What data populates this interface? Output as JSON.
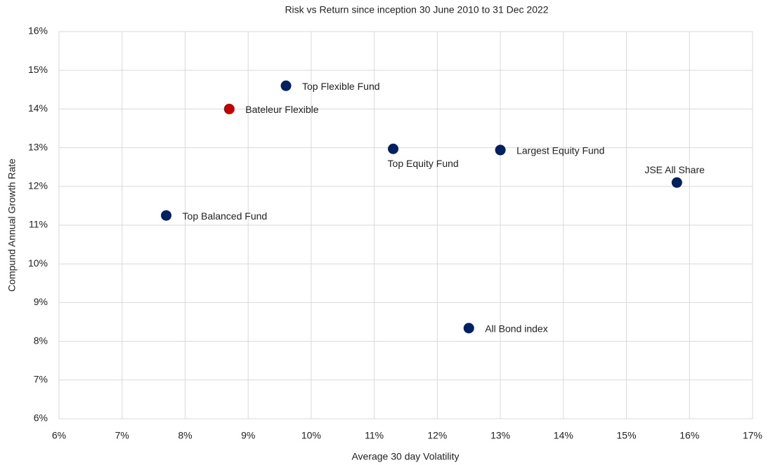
{
  "chart_data": {
    "type": "scatter",
    "title": "Risk vs Return since inception 30 June 2010 to 31 Dec 2022",
    "x_label": "Average 30 day Volatility",
    "y_label": "Compund Annual Growth Rate",
    "labels": [
      "Top Flexible Fund",
      "Bateleur Flexible",
      "Top Equity Fund",
      "Largest Equity Fund",
      "JSE All Share",
      "Top Balanced Fund",
      "All Bond index"
    ],
    "x": [
      9.6,
      8.7,
      11.3,
      13.0,
      15.8,
      7.7,
      12.5
    ],
    "y": [
      14.6,
      14.0,
      12.97,
      12.94,
      12.1,
      11.25,
      8.34
    ],
    "colors": [
      "#002060",
      "#c00000",
      "#002060",
      "#002060",
      "#002060",
      "#002060",
      "#002060"
    ],
    "xlim": [
      6,
      17
    ],
    "xticks": [
      {
        "value": 6,
        "label": "6%"
      },
      {
        "value": 7,
        "label": "7%"
      },
      {
        "value": 8,
        "label": "8%"
      },
      {
        "value": 9,
        "label": "9%"
      },
      {
        "value": 10,
        "label": "10%"
      },
      {
        "value": 11,
        "label": "11%"
      },
      {
        "value": 12,
        "label": "12%"
      },
      {
        "value": 13,
        "label": "13%"
      },
      {
        "value": 14,
        "label": "14%"
      },
      {
        "value": 15,
        "label": "15%"
      },
      {
        "value": 16,
        "label": "16%"
      },
      {
        "value": 17,
        "label": "17%"
      }
    ],
    "ylim": [
      6,
      16
    ],
    "yticks": [
      {
        "value": 6,
        "label": "6%"
      },
      {
        "value": 7,
        "label": "7%"
      },
      {
        "value": 8,
        "label": "8%"
      },
      {
        "value": 9,
        "label": "9%"
      },
      {
        "value": 10,
        "label": "10%"
      },
      {
        "value": 11,
        "label": "11%"
      },
      {
        "value": 12,
        "label": "12%"
      },
      {
        "value": 13,
        "label": "13%"
      },
      {
        "value": 14,
        "label": "14%"
      },
      {
        "value": 15,
        "label": "15%"
      },
      {
        "value": 16,
        "label": "16%"
      }
    ],
    "grid": true
  }
}
